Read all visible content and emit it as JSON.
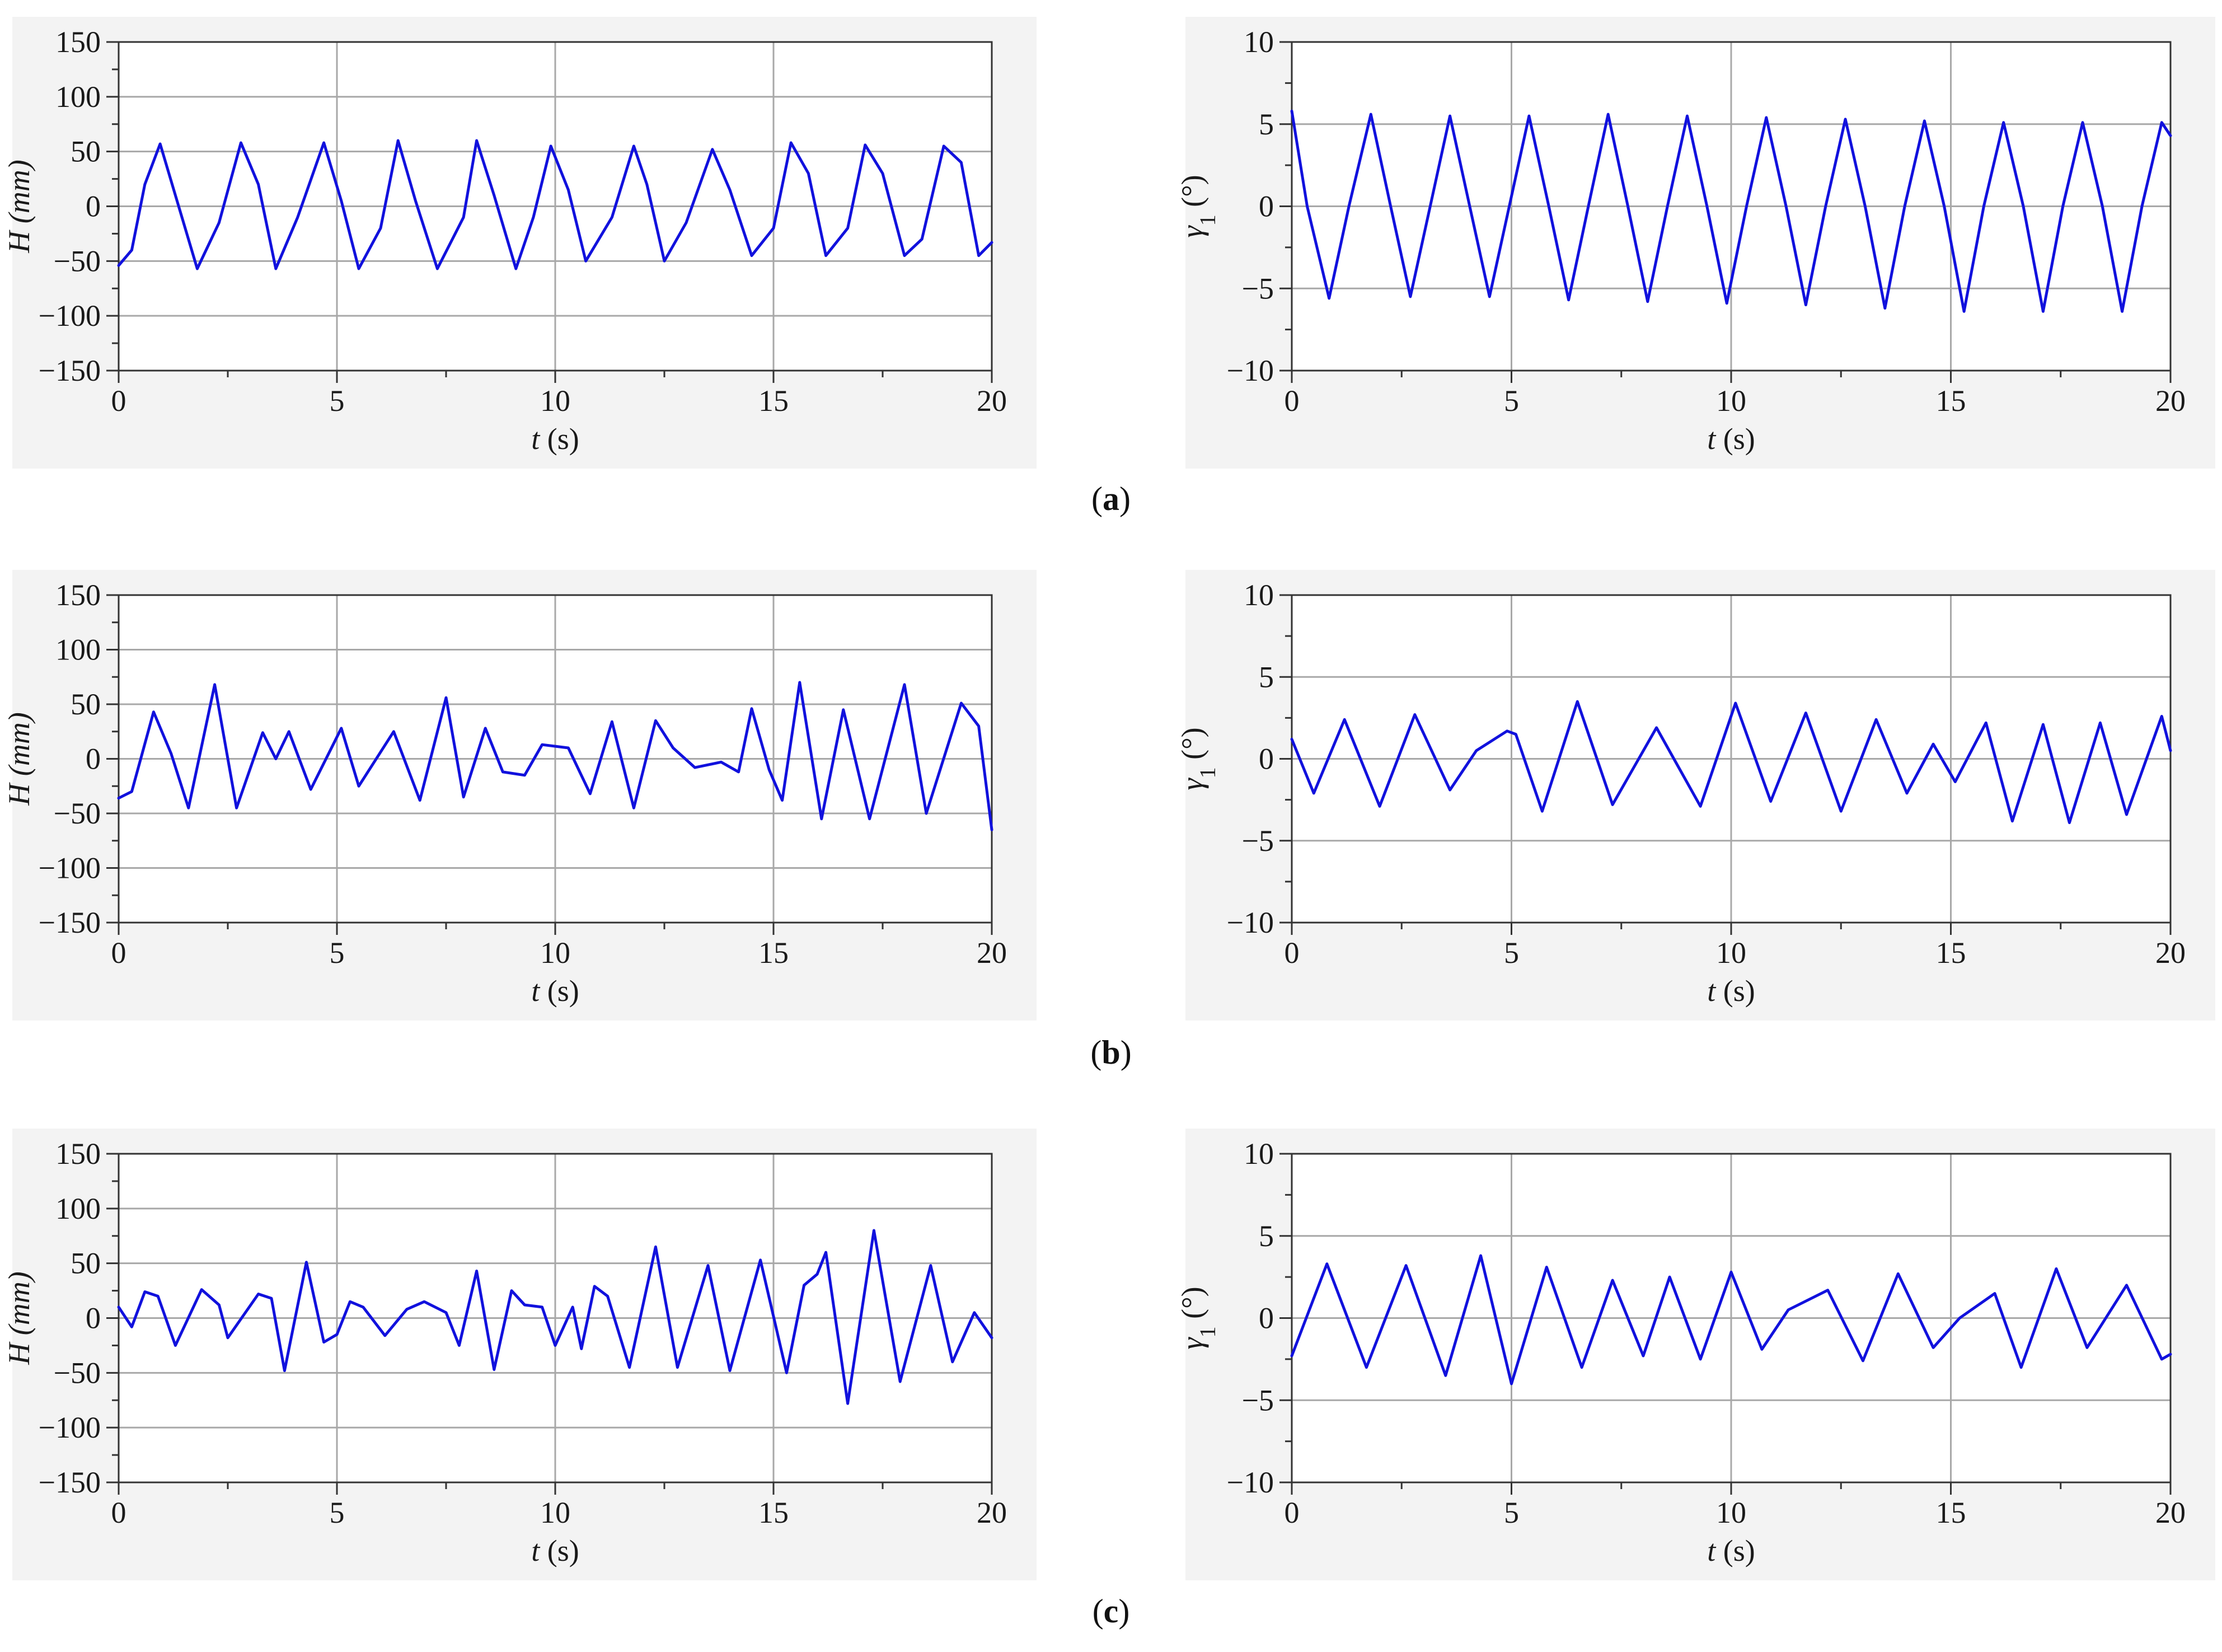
{
  "colors": {
    "line": "#1111dd",
    "grid": "#a8a8a8",
    "axis": "#333333",
    "bg": "#f3f3f3"
  },
  "panel_labels": [
    {
      "open": "(",
      "letter": "a",
      "close": ")"
    },
    {
      "open": "(",
      "letter": "b",
      "close": ")"
    },
    {
      "open": "(",
      "letter": "c",
      "close": ")"
    }
  ],
  "chart_data": [
    {
      "type": "line",
      "row": 0,
      "col": 0,
      "xlabel": {
        "var": "t",
        "unit": "(s)"
      },
      "ylabel": {
        "var": "H",
        "unit": "(mm)"
      },
      "xlim": [
        0,
        20
      ],
      "ylim": [
        -150,
        150
      ],
      "xticks": [
        0,
        5,
        10,
        15,
        20
      ],
      "yticks": [
        -150,
        -100,
        -50,
        0,
        50,
        100,
        150
      ],
      "grid": true,
      "series": [
        {
          "values": [
            [
              0,
              -54
            ],
            [
              0.3,
              -40
            ],
            [
              0.6,
              20
            ],
            [
              0.95,
              57
            ],
            [
              1.3,
              10
            ],
            [
              1.8,
              -57
            ],
            [
              2.3,
              -15
            ],
            [
              2.8,
              58
            ],
            [
              3.2,
              20
            ],
            [
              3.6,
              -57
            ],
            [
              4.1,
              -10
            ],
            [
              4.7,
              58
            ],
            [
              5.1,
              5
            ],
            [
              5.5,
              -57
            ],
            [
              6,
              -20
            ],
            [
              6.4,
              60
            ],
            [
              6.8,
              5
            ],
            [
              7.3,
              -57
            ],
            [
              7.9,
              -10
            ],
            [
              8.2,
              60
            ],
            [
              8.6,
              10
            ],
            [
              9.1,
              -57
            ],
            [
              9.5,
              -10
            ],
            [
              9.9,
              55
            ],
            [
              10.3,
              15
            ],
            [
              10.7,
              -50
            ],
            [
              11.3,
              -10
            ],
            [
              11.8,
              55
            ],
            [
              12.1,
              20
            ],
            [
              12.5,
              -50
            ],
            [
              13,
              -15
            ],
            [
              13.6,
              52
            ],
            [
              14,
              15
            ],
            [
              14.5,
              -45
            ],
            [
              15,
              -20
            ],
            [
              15.4,
              58
            ],
            [
              15.8,
              30
            ],
            [
              16.2,
              -45
            ],
            [
              16.7,
              -20
            ],
            [
              17.1,
              56
            ],
            [
              17.5,
              30
            ],
            [
              18,
              -45
            ],
            [
              18.4,
              -30
            ],
            [
              18.9,
              55
            ],
            [
              19.3,
              40
            ],
            [
              19.7,
              -45
            ],
            [
              20,
              -33
            ]
          ]
        }
      ]
    },
    {
      "type": "line",
      "row": 0,
      "col": 1,
      "xlabel": {
        "var": "t",
        "unit": "(s)"
      },
      "ylabel": {
        "var": "γ",
        "sub": "1",
        "unit": "(°)"
      },
      "xlim": [
        0,
        20
      ],
      "ylim": [
        -10,
        10
      ],
      "xticks": [
        0,
        5,
        10,
        15,
        20
      ],
      "yticks": [
        -10,
        -5,
        0,
        5,
        10
      ],
      "grid": true,
      "series": [
        {
          "values": [
            [
              0,
              5.8
            ],
            [
              0.35,
              0
            ],
            [
              0.85,
              -5.6
            ],
            [
              1.3,
              0
            ],
            [
              1.8,
              5.6
            ],
            [
              2.25,
              0
            ],
            [
              2.7,
              -5.5
            ],
            [
              3.15,
              0
            ],
            [
              3.6,
              5.5
            ],
            [
              4.05,
              0
            ],
            [
              4.5,
              -5.5
            ],
            [
              4.95,
              0
            ],
            [
              5.4,
              5.5
            ],
            [
              5.85,
              0
            ],
            [
              6.3,
              -5.7
            ],
            [
              6.75,
              0
            ],
            [
              7.2,
              5.6
            ],
            [
              7.65,
              0
            ],
            [
              8.1,
              -5.8
            ],
            [
              8.55,
              0
            ],
            [
              9,
              5.5
            ],
            [
              9.45,
              0
            ],
            [
              9.9,
              -5.9
            ],
            [
              10.35,
              0
            ],
            [
              10.8,
              5.4
            ],
            [
              11.25,
              0
            ],
            [
              11.7,
              -6
            ],
            [
              12.15,
              0
            ],
            [
              12.6,
              5.3
            ],
            [
              13.05,
              0
            ],
            [
              13.5,
              -6.2
            ],
            [
              13.95,
              0
            ],
            [
              14.4,
              5.2
            ],
            [
              14.85,
              0
            ],
            [
              15.3,
              -6.4
            ],
            [
              15.75,
              0
            ],
            [
              16.2,
              5.1
            ],
            [
              16.65,
              0
            ],
            [
              17.1,
              -6.4
            ],
            [
              17.55,
              0
            ],
            [
              18,
              5.1
            ],
            [
              18.45,
              0
            ],
            [
              18.9,
              -6.4
            ],
            [
              19.35,
              0
            ],
            [
              19.8,
              5.1
            ],
            [
              20,
              4.3
            ]
          ]
        }
      ]
    },
    {
      "type": "line",
      "row": 1,
      "col": 0,
      "xlabel": {
        "var": "t",
        "unit": "(s)"
      },
      "ylabel": {
        "var": "H",
        "unit": "(mm)"
      },
      "xlim": [
        0,
        20
      ],
      "ylim": [
        -150,
        150
      ],
      "xticks": [
        0,
        5,
        10,
        15,
        20
      ],
      "yticks": [
        -150,
        -100,
        -50,
        0,
        50,
        100,
        150
      ],
      "grid": true,
      "series": [
        {
          "values": [
            [
              0,
              -36
            ],
            [
              0.3,
              -30
            ],
            [
              0.8,
              43
            ],
            [
              1.2,
              5
            ],
            [
              1.6,
              -45
            ],
            [
              2.2,
              68
            ],
            [
              2.7,
              -45
            ],
            [
              3.3,
              24
            ],
            [
              3.6,
              0
            ],
            [
              3.9,
              25
            ],
            [
              4.4,
              -28
            ],
            [
              5.1,
              28
            ],
            [
              5.5,
              -25
            ],
            [
              6.3,
              25
            ],
            [
              6.9,
              -38
            ],
            [
              7.5,
              56
            ],
            [
              7.9,
              -35
            ],
            [
              8.4,
              28
            ],
            [
              8.8,
              -12
            ],
            [
              9.3,
              -15
            ],
            [
              9.7,
              13
            ],
            [
              10.3,
              10
            ],
            [
              10.8,
              -32
            ],
            [
              11.3,
              34
            ],
            [
              11.8,
              -45
            ],
            [
              12.3,
              35
            ],
            [
              12.7,
              10
            ],
            [
              13.2,
              -8
            ],
            [
              13.8,
              -3
            ],
            [
              14.2,
              -12
            ],
            [
              14.5,
              46
            ],
            [
              14.9,
              -10
            ],
            [
              15.2,
              -38
            ],
            [
              15.6,
              70
            ],
            [
              16.1,
              -55
            ],
            [
              16.6,
              45
            ],
            [
              17.2,
              -55
            ],
            [
              18,
              68
            ],
            [
              18.5,
              -50
            ],
            [
              19.3,
              51
            ],
            [
              19.7,
              30
            ],
            [
              20,
              -65
            ]
          ]
        }
      ]
    },
    {
      "type": "line",
      "row": 1,
      "col": 1,
      "xlabel": {
        "var": "t",
        "unit": "(s)"
      },
      "ylabel": {
        "var": "γ",
        "sub": "1",
        "unit": "(°)"
      },
      "xlim": [
        0,
        20
      ],
      "ylim": [
        -10,
        10
      ],
      "xticks": [
        0,
        5,
        10,
        15,
        20
      ],
      "yticks": [
        -10,
        -5,
        0,
        5,
        10
      ],
      "grid": true,
      "series": [
        {
          "values": [
            [
              0,
              1.2
            ],
            [
              0.5,
              -2.1
            ],
            [
              1.2,
              2.4
            ],
            [
              2,
              -2.9
            ],
            [
              2.8,
              2.7
            ],
            [
              3.6,
              -1.9
            ],
            [
              4.2,
              0.5
            ],
            [
              4.9,
              1.7
            ],
            [
              5.1,
              1.5
            ],
            [
              5.7,
              -3.2
            ],
            [
              6.5,
              3.5
            ],
            [
              7.3,
              -2.8
            ],
            [
              8.3,
              1.9
            ],
            [
              9.3,
              -2.9
            ],
            [
              10.1,
              3.4
            ],
            [
              10.9,
              -2.6
            ],
            [
              11.7,
              2.8
            ],
            [
              12.5,
              -3.2
            ],
            [
              13.3,
              2.4
            ],
            [
              14,
              -2.1
            ],
            [
              14.6,
              0.9
            ],
            [
              15.1,
              -1.4
            ],
            [
              15.8,
              2.2
            ],
            [
              16.4,
              -3.8
            ],
            [
              17.1,
              2.1
            ],
            [
              17.7,
              -3.9
            ],
            [
              18.4,
              2.2
            ],
            [
              19,
              -3.4
            ],
            [
              19.8,
              2.6
            ],
            [
              20,
              0.5
            ]
          ]
        }
      ]
    },
    {
      "type": "line",
      "row": 2,
      "col": 0,
      "xlabel": {
        "var": "t",
        "unit": "(s)"
      },
      "ylabel": {
        "var": "H",
        "unit": "(mm)"
      },
      "xlim": [
        0,
        20
      ],
      "ylim": [
        -150,
        150
      ],
      "xticks": [
        0,
        5,
        10,
        15,
        20
      ],
      "yticks": [
        -150,
        -100,
        -50,
        0,
        50,
        100,
        150
      ],
      "grid": true,
      "series": [
        {
          "values": [
            [
              0,
              10
            ],
            [
              0.3,
              -8
            ],
            [
              0.6,
              24
            ],
            [
              0.9,
              20
            ],
            [
              1.3,
              -25
            ],
            [
              1.9,
              26
            ],
            [
              2.3,
              12
            ],
            [
              2.5,
              -18
            ],
            [
              3.2,
              22
            ],
            [
              3.5,
              18
            ],
            [
              3.8,
              -48
            ],
            [
              4.3,
              51
            ],
            [
              4.7,
              -22
            ],
            [
              5,
              -15
            ],
            [
              5.3,
              15
            ],
            [
              5.6,
              10
            ],
            [
              6.1,
              -16
            ],
            [
              6.6,
              8
            ],
            [
              7,
              15
            ],
            [
              7.5,
              5
            ],
            [
              7.8,
              -25
            ],
            [
              8.2,
              43
            ],
            [
              8.6,
              -47
            ],
            [
              9,
              25
            ],
            [
              9.3,
              12
            ],
            [
              9.7,
              10
            ],
            [
              10,
              -25
            ],
            [
              10.4,
              10
            ],
            [
              10.6,
              -28
            ],
            [
              10.9,
              29
            ],
            [
              11.2,
              20
            ],
            [
              11.7,
              -45
            ],
            [
              12.3,
              65
            ],
            [
              12.8,
              -45
            ],
            [
              13.5,
              48
            ],
            [
              14,
              -48
            ],
            [
              14.7,
              53
            ],
            [
              15.3,
              -50
            ],
            [
              15.7,
              30
            ],
            [
              16,
              40
            ],
            [
              16.2,
              60
            ],
            [
              16.7,
              -78
            ],
            [
              17.3,
              80
            ],
            [
              17.9,
              -58
            ],
            [
              18.6,
              48
            ],
            [
              19.1,
              -40
            ],
            [
              19.6,
              5
            ],
            [
              20,
              -18
            ]
          ]
        }
      ]
    },
    {
      "type": "line",
      "row": 2,
      "col": 1,
      "xlabel": {
        "var": "t",
        "unit": "(s)"
      },
      "ylabel": {
        "var": "γ",
        "sub": "1",
        "unit": "(°)"
      },
      "xlim": [
        0,
        20
      ],
      "ylim": [
        -10,
        10
      ],
      "xticks": [
        0,
        5,
        10,
        15,
        20
      ],
      "yticks": [
        -10,
        -5,
        0,
        5,
        10
      ],
      "grid": true,
      "series": [
        {
          "values": [
            [
              0,
              -2.3
            ],
            [
              0.8,
              3.3
            ],
            [
              1.7,
              -3
            ],
            [
              2.6,
              3.2
            ],
            [
              3.5,
              -3.5
            ],
            [
              4.3,
              3.8
            ],
            [
              5,
              -4
            ],
            [
              5.8,
              3.1
            ],
            [
              6.6,
              -3
            ],
            [
              7.3,
              2.3
            ],
            [
              8,
              -2.3
            ],
            [
              8.6,
              2.5
            ],
            [
              9.3,
              -2.5
            ],
            [
              10,
              2.8
            ],
            [
              10.7,
              -1.9
            ],
            [
              11.3,
              0.5
            ],
            [
              12.2,
              1.7
            ],
            [
              13,
              -2.6
            ],
            [
              13.8,
              2.7
            ],
            [
              14.6,
              -1.8
            ],
            [
              15.2,
              0
            ],
            [
              16,
              1.5
            ],
            [
              16.6,
              -3
            ],
            [
              17.4,
              3
            ],
            [
              18.1,
              -1.8
            ],
            [
              19,
              2
            ],
            [
              19.8,
              -2.5
            ],
            [
              20,
              -2.2
            ]
          ]
        }
      ]
    }
  ]
}
